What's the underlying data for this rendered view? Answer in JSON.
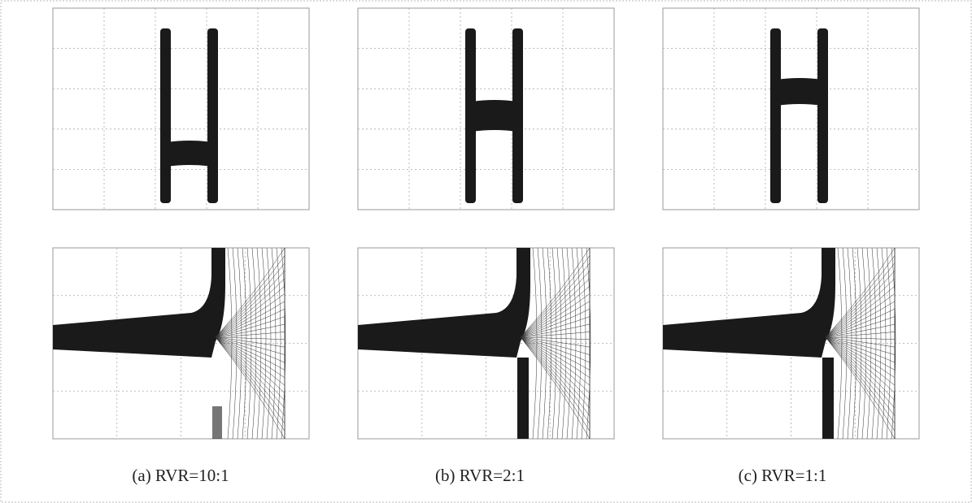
{
  "captions": [
    "(a)  RVR=10:1",
    "(b)  RVR=2:1",
    "(c)  RVR=1:1"
  ]
}
